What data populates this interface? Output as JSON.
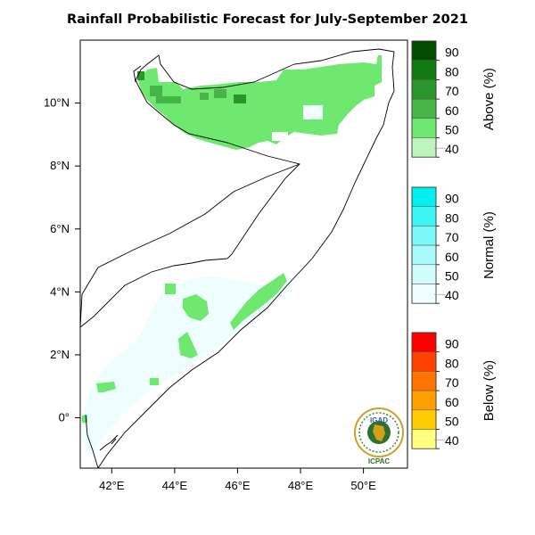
{
  "title": "Rainfall Probabilistic Forecast for July-September 2021",
  "x_axis": {
    "ticks": [
      {
        "value": 42,
        "label": "42°E"
      },
      {
        "value": 44,
        "label": "44°E"
      },
      {
        "value": 46,
        "label": "46°E"
      },
      {
        "value": 48,
        "label": "48°E"
      },
      {
        "value": 50,
        "label": "50°E"
      }
    ]
  },
  "y_axis": {
    "ticks": [
      {
        "value": 10,
        "label": "10°N"
      },
      {
        "value": 8,
        "label": "8°N"
      },
      {
        "value": 6,
        "label": "6°N"
      },
      {
        "value": 4,
        "label": "4°N"
      },
      {
        "value": 2,
        "label": "2°N"
      },
      {
        "value": 0,
        "label": "0°"
      }
    ]
  },
  "map_extent": {
    "lon_min": 41.0,
    "lon_max": 51.4,
    "lat_min": -1.6,
    "lat_max": 12.0
  },
  "legend": [
    {
      "title": "Above (%)",
      "levels": [
        "90",
        "80",
        "70",
        "60",
        "50",
        "40"
      ],
      "colors": [
        "#004d00",
        "#117a11",
        "#2a962a",
        "#46b446",
        "#6ee86e",
        "#bdf5bd"
      ]
    },
    {
      "title": "Normal (%)",
      "levels": [
        "90",
        "80",
        "70",
        "60",
        "50",
        "40"
      ],
      "colors": [
        "#00f0f0",
        "#3df5f5",
        "#7af7f7",
        "#a8fafa",
        "#d0fcfc",
        "#eefdfd"
      ]
    },
    {
      "title": "Below (%)",
      "levels": [
        "90",
        "80",
        "70",
        "60",
        "50",
        "40"
      ],
      "colors": [
        "#ff0000",
        "#ff4000",
        "#ff7300",
        "#ffa000",
        "#ffcc00",
        "#ffff80"
      ]
    }
  ],
  "logo": {
    "top_text": "IGAD",
    "bottom_text": "ICPAC"
  },
  "colors": {
    "above_50": "#6ee86e",
    "above_60": "#46b446",
    "above_70": "#2a962a",
    "normal_40": "#eefdfd",
    "border": "#000000"
  }
}
